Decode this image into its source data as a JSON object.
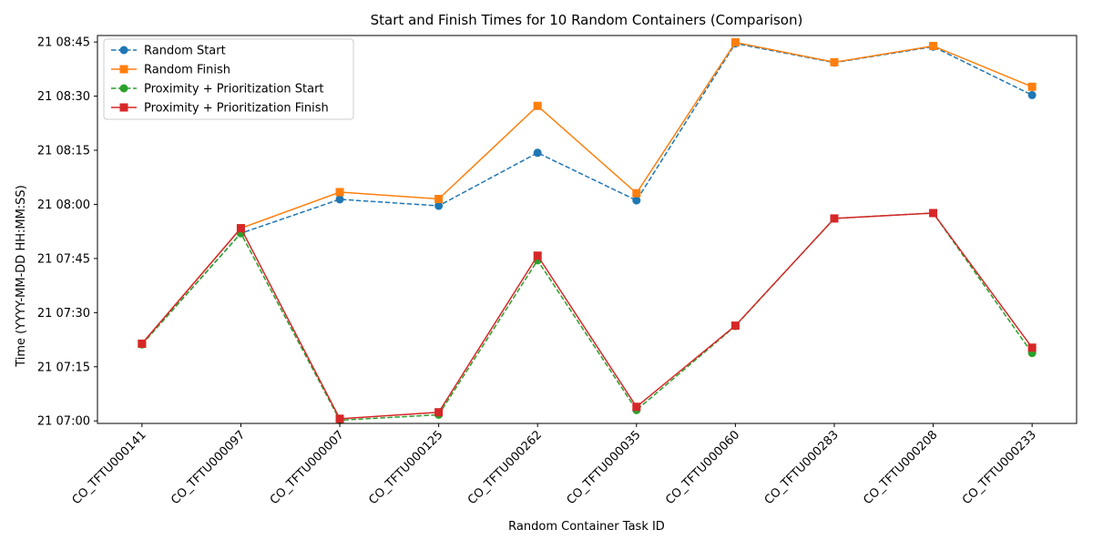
{
  "chart_data": {
    "type": "line",
    "title": "Start and Finish Times for 10 Random Containers (Comparison)",
    "xlabel": "Random Container Task ID",
    "ylabel": "Time (YYYY-MM-DD HH:MM:SS)",
    "categories": [
      "CO_TFTU000141",
      "CO_TFTU000097",
      "CO_TFTU000007",
      "CO_TFTU000125",
      "CO_TFTU000262",
      "CO_TFTU000035",
      "CO_TFTU000060",
      "CO_TFTU000283",
      "CO_TFTU000208",
      "CO_TFTU000233"
    ],
    "y_ticks": [
      {
        "label": "21 07:00",
        "minutes": 420
      },
      {
        "label": "21 07:15",
        "minutes": 435
      },
      {
        "label": "21 07:30",
        "minutes": 450
      },
      {
        "label": "21 07:45",
        "minutes": 465
      },
      {
        "label": "21 08:00",
        "minutes": 480
      },
      {
        "label": "21 08:15",
        "minutes": 495
      },
      {
        "label": "21 08:30",
        "minutes": 510
      },
      {
        "label": "21 08:45",
        "minutes": 525
      }
    ],
    "ylim_minutes": [
      419.3,
      526.8
    ],
    "grid": false,
    "legend_position": "top-left",
    "series": [
      {
        "name": "Random Start",
        "color": "#1f77b4",
        "dashed": true,
        "marker": "circle",
        "values": [
          441.2,
          472.0,
          481.4,
          479.6,
          494.3,
          481.1,
          524.6,
          519.3,
          523.7,
          510.3
        ]
      },
      {
        "name": "Random Finish",
        "color": "#ff7f0e",
        "dashed": false,
        "marker": "square",
        "values": [
          441.4,
          473.4,
          483.4,
          481.5,
          507.3,
          483.1,
          524.9,
          519.4,
          523.9,
          512.6
        ]
      },
      {
        "name": "Proximity + Prioritization Start",
        "color": "#2ca02c",
        "dashed": true,
        "marker": "circle",
        "values": [
          441.2,
          472.0,
          420.2,
          421.7,
          464.5,
          423.0,
          446.3,
          476.1,
          477.6,
          438.8
        ]
      },
      {
        "name": "Proximity + Prioritization Finish",
        "color": "#d62728",
        "dashed": false,
        "marker": "square",
        "values": [
          441.4,
          473.4,
          420.6,
          422.4,
          465.8,
          423.9,
          446.4,
          476.1,
          477.6,
          440.3
        ]
      }
    ]
  }
}
